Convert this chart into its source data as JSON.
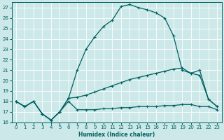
{
  "xlabel": "Humidex (Indice chaleur)",
  "bg_color": "#cce8e8",
  "line_color": "#006060",
  "xlim": [
    -0.5,
    23.5
  ],
  "ylim": [
    16,
    27.5
  ],
  "yticks": [
    16,
    17,
    18,
    19,
    20,
    21,
    22,
    23,
    24,
    25,
    26,
    27
  ],
  "xticks": [
    0,
    1,
    2,
    3,
    4,
    5,
    6,
    7,
    8,
    9,
    10,
    11,
    12,
    13,
    14,
    15,
    16,
    17,
    18,
    19,
    20,
    21,
    22,
    23
  ],
  "line_peak_x": [
    0,
    1,
    2,
    3,
    4,
    5,
    6,
    7,
    8,
    9,
    10,
    11,
    12,
    13,
    14,
    15,
    16,
    17,
    18,
    19,
    20,
    21,
    22,
    23
  ],
  "line_peak_y": [
    18.0,
    17.5,
    18.0,
    16.8,
    16.2,
    17.0,
    18.3,
    21.0,
    23.0,
    24.2,
    25.2,
    25.8,
    27.1,
    27.3,
    27.0,
    26.8,
    26.5,
    26.0,
    24.3,
    21.0,
    20.7,
    21.0,
    18.2,
    17.5
  ],
  "line_mid_x": [
    0,
    1,
    2,
    3,
    4,
    5,
    6,
    7,
    8,
    9,
    10,
    11,
    12,
    13,
    14,
    15,
    16,
    17,
    18,
    19,
    20,
    21,
    22,
    23
  ],
  "line_mid_y": [
    18.0,
    17.5,
    18.0,
    16.8,
    16.2,
    17.0,
    18.3,
    18.4,
    18.6,
    18.9,
    19.2,
    19.5,
    19.8,
    20.1,
    20.3,
    20.5,
    20.7,
    20.9,
    21.1,
    21.2,
    20.7,
    20.5,
    18.2,
    17.5
  ],
  "line_low_x": [
    0,
    1,
    2,
    3,
    4,
    5,
    6,
    7,
    8,
    9,
    10,
    11,
    12,
    13,
    14,
    15,
    16,
    17,
    18,
    19,
    20,
    21,
    22,
    23
  ],
  "line_low_y": [
    18.0,
    17.5,
    18.0,
    16.8,
    16.2,
    17.0,
    18.0,
    17.2,
    17.2,
    17.2,
    17.3,
    17.3,
    17.4,
    17.4,
    17.5,
    17.5,
    17.5,
    17.6,
    17.6,
    17.7,
    17.7,
    17.5,
    17.5,
    17.2
  ]
}
